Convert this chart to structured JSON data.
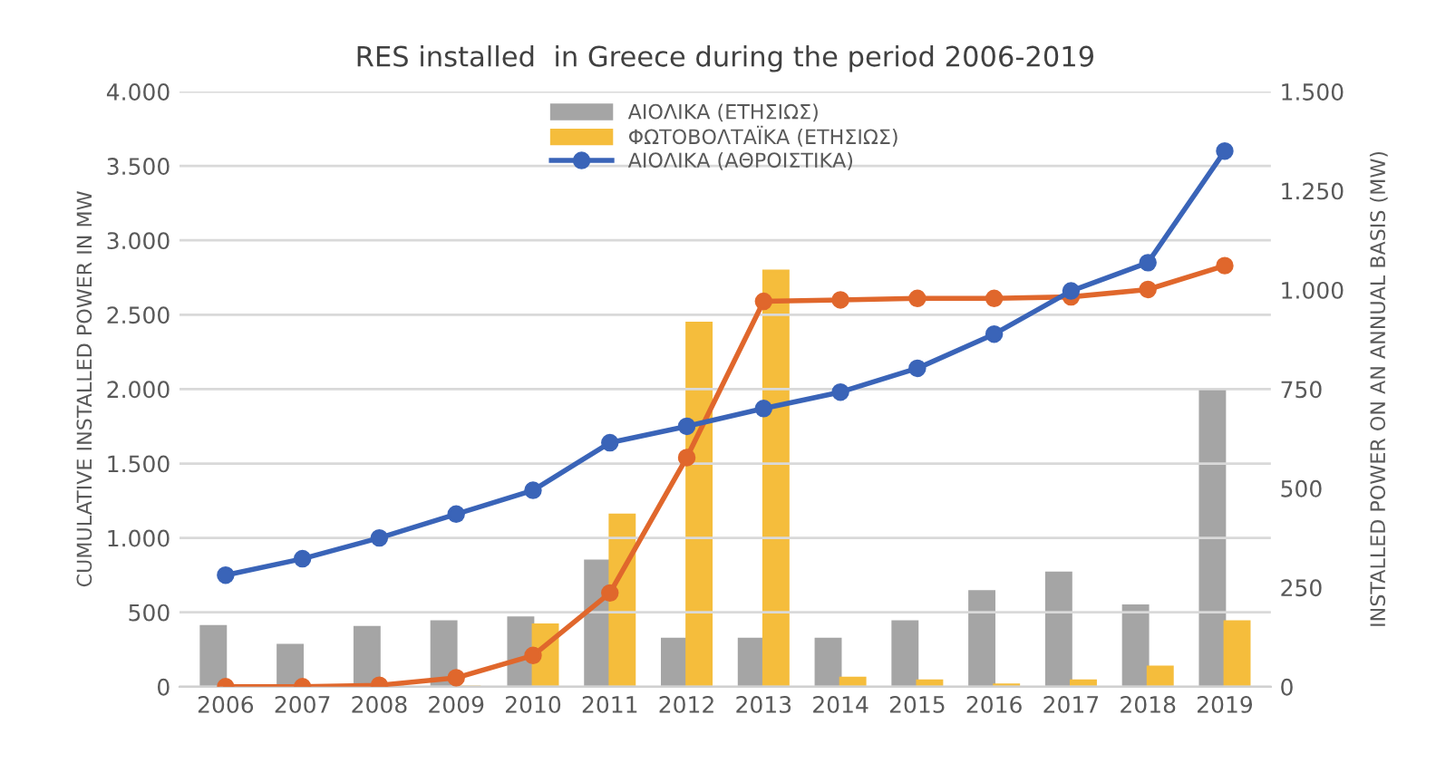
{
  "chart_data": {
    "type": "bar",
    "title": "RES installed  in Greece during the period 2006-2019",
    "ylabel": "CUMULATIVE INSTALLED POWER IN MW",
    "y2label": "INSTALLED POWER ON AN ANNUAL BASIS (MW)",
    "categories": [
      "2006",
      "2007",
      "2008",
      "2009",
      "2010",
      "2011",
      "2012",
      "2013",
      "2014",
      "2015",
      "2016",
      "2017",
      "2018",
      "2019"
    ],
    "series": [
      {
        "name": "ΑΙΟΛΙΚΑ (ΕΤΗΣΙΩΣ)",
        "axis": "y2",
        "color": "#a5a5a5",
        "values": [
          152,
          105,
          150,
          164,
          174,
          317,
          120,
          120,
          120,
          164,
          240,
          287,
          204,
          750
        ]
      },
      {
        "name": "ΦΩΤΟΒΟΛΤΑΪΚΑ (ΕΤΗΣΙΩΣ)",
        "axis": "y2",
        "color": "#f5bd3c",
        "values": [
          1,
          2,
          null,
          null,
          156,
          433,
          917,
          1048,
          22,
          15,
          5,
          15,
          50,
          164
        ]
      },
      {
        "type": "line",
        "axis": "y",
        "color": "#e0672c",
        "marker": "circle",
        "values": [
          0,
          0,
          10,
          60,
          210,
          630,
          1540,
          2590,
          2600,
          2610,
          2610,
          2620,
          2670,
          2830
        ]
      },
      {
        "name": "ΑΙΟΛΙΚΑ (ΑΘΡΟΙΣΤΙΚΑ)",
        "type": "line",
        "axis": "y",
        "color": "#3a64b8",
        "marker": "circle",
        "values": [
          750,
          860,
          1000,
          1160,
          1320,
          1640,
          1750,
          1870,
          1980,
          2140,
          2370,
          2660,
          2850,
          3600
        ]
      }
    ],
    "ylim": [
      0,
      4000
    ],
    "yticks": [
      0,
      {
        "value": 500,
        "label": "500"
      },
      {
        "value": 1000,
        "label": "1.000"
      },
      {
        "value": 1500,
        "label": "1.500"
      },
      {
        "value": 2000,
        "label": "2.000"
      },
      {
        "value": 2500,
        "label": "2.500"
      },
      {
        "value": 3000,
        "label": "3.000"
      },
      {
        "value": 3500,
        "label": "3.500"
      },
      {
        "value": 4000,
        "label": "4.000"
      }
    ],
    "y2lim": [
      0,
      1500
    ],
    "y2ticks": [
      0,
      250,
      500,
      750,
      {
        "value": 1000,
        "label": "1.000"
      },
      {
        "value": 1250,
        "label": "1.250"
      },
      {
        "value": 1500,
        "label": "1.500"
      }
    ],
    "grid": "y",
    "legend": "top"
  }
}
